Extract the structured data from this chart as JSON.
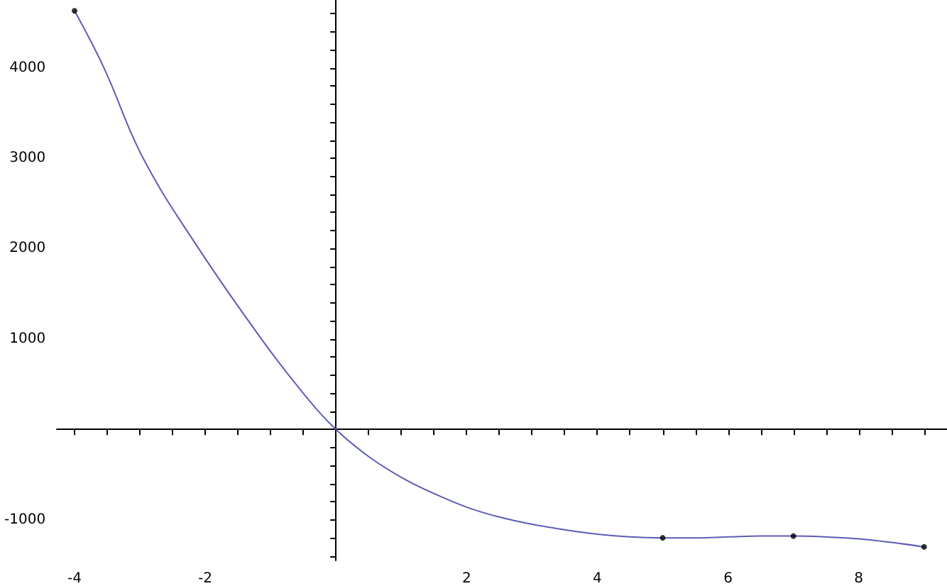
{
  "chart_data": {
    "type": "line",
    "xlim": [
      -4.27,
      9.35
    ],
    "ylim": [
      -1450,
      4750
    ],
    "xticks": [
      -4,
      {
        "value": -3.5,
        "label": null
      },
      -2,
      {
        "value": -3,
        "label": null
      },
      {
        "value": -2.5,
        "label": null
      },
      {
        "value": -1.5,
        "label": null
      },
      {
        "value": -1,
        "label": null
      },
      {
        "value": -0.5,
        "label": null
      },
      {
        "value": 0.5,
        "label": null
      },
      {
        "value": 1,
        "label": null
      },
      {
        "value": 1.5,
        "label": null
      },
      2,
      {
        "value": 2.5,
        "label": null
      },
      {
        "value": 3,
        "label": null
      },
      {
        "value": 3.5,
        "label": null
      },
      4,
      {
        "value": 4.5,
        "label": null
      },
      {
        "value": 5,
        "label": null
      },
      {
        "value": 5.5,
        "label": null
      },
      6,
      {
        "value": 6.5,
        "label": null
      },
      {
        "value": 7,
        "label": null
      },
      {
        "value": 7.5,
        "label": null
      },
      8,
      {
        "value": 8.5,
        "label": null
      },
      {
        "value": 9,
        "label": null
      }
    ],
    "yticks": [
      {
        "value": -1400,
        "label": null
      },
      {
        "value": -1200,
        "label": null
      },
      -1000,
      {
        "value": -800,
        "label": null
      },
      {
        "value": -600,
        "label": null
      },
      {
        "value": -400,
        "label": null
      },
      {
        "value": -200,
        "label": null
      },
      {
        "value": 200,
        "label": null
      },
      {
        "value": 400,
        "label": null
      },
      {
        "value": 600,
        "label": null
      },
      {
        "value": 800,
        "label": null
      },
      1000,
      {
        "value": 1200,
        "label": null
      },
      {
        "value": 1400,
        "label": null
      },
      {
        "value": 1600,
        "label": null
      },
      {
        "value": 1800,
        "label": null
      },
      2000,
      {
        "value": 2200,
        "label": null
      },
      {
        "value": 2400,
        "label": null
      },
      {
        "value": 2600,
        "label": null
      },
      {
        "value": 2800,
        "label": null
      },
      3000,
      {
        "value": 3200,
        "label": null
      },
      {
        "value": 3400,
        "label": null
      },
      {
        "value": 3600,
        "label": null
      },
      {
        "value": 3800,
        "label": null
      },
      4000,
      {
        "value": 4200,
        "label": null
      },
      {
        "value": 4400,
        "label": null
      },
      {
        "value": 4600,
        "label": null
      }
    ],
    "grid": false,
    "series": [
      {
        "color": "#5c5cb8",
        "marker": "none",
        "line_style": "solid",
        "x": [
          -4,
          -3.55,
          -2.95,
          -2.1,
          -1.14,
          -0.5,
          0,
          0.5,
          1,
          1.5,
          2,
          2.5,
          3,
          3.5,
          4,
          4.5,
          5,
          5.5,
          6,
          6.5,
          7,
          7.5,
          8,
          8.5,
          9
        ],
        "values": [
          4630,
          4000,
          3000,
          2000,
          1000,
          400,
          0,
          -300,
          -530,
          -710,
          -860,
          -970,
          -1050,
          -1110,
          -1160,
          -1190,
          -1200,
          -1200,
          -1190,
          -1180,
          -1180,
          -1190,
          -1210,
          -1250,
          -1300
        ]
      },
      {
        "type": "scatter",
        "color": "#000000",
        "marker": "circle",
        "x": [
          -4,
          5,
          7,
          9
        ],
        "values": [
          4630,
          -1200,
          -1180,
          -1300
        ]
      }
    ]
  }
}
